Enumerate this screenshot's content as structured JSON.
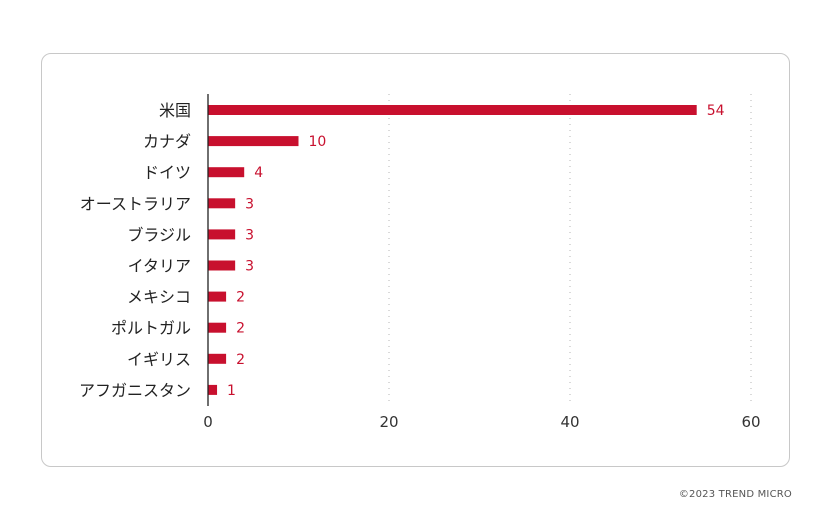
{
  "chart_data": {
    "type": "bar",
    "orientation": "horizontal",
    "title": "",
    "xlabel": "",
    "ylabel": "",
    "categories": [
      "米国",
      "カナダ",
      "ドイツ",
      "オーストラリア",
      "ブラジル",
      "イタリア",
      "メキシコ",
      "ポルトガル",
      "イギリス",
      "アフガニスタン"
    ],
    "values": [
      54,
      10,
      4,
      3,
      3,
      3,
      2,
      2,
      2,
      1
    ],
    "xlim": [
      0,
      60
    ],
    "xticks": [
      0,
      20,
      40,
      60
    ],
    "grid": "vertical dotted",
    "bar_color": "#c8102e",
    "data_labels": true
  },
  "footer": {
    "copyright": "©2023 TREND MICRO"
  }
}
